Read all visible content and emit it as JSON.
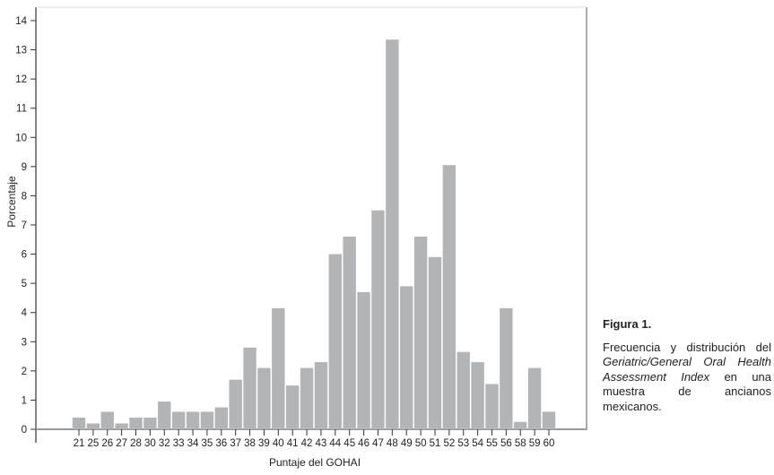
{
  "chart_data": {
    "type": "bar",
    "title": "",
    "xlabel": "Puntaje del GOHAI",
    "ylabel": "Porcentaje",
    "ylim": [
      0,
      14
    ],
    "yticks": [
      "0",
      "1",
      "2",
      "3",
      "4",
      "5",
      "6",
      "7",
      "8",
      "9",
      "10",
      "11",
      "12",
      "13",
      "14"
    ],
    "categories": [
      "21",
      "25",
      "26",
      "27",
      "28",
      "30",
      "32",
      "33",
      "34",
      "35",
      "36",
      "37",
      "38",
      "39",
      "40",
      "41",
      "42",
      "43",
      "44",
      "45",
      "46",
      "47",
      "48",
      "49",
      "50",
      "51",
      "52",
      "53",
      "54",
      "55",
      "56",
      "58",
      "59",
      "60"
    ],
    "values": [
      0.4,
      0.2,
      0.6,
      0.2,
      0.4,
      0.4,
      0.95,
      0.6,
      0.6,
      0.6,
      0.75,
      1.7,
      2.8,
      2.1,
      4.15,
      1.5,
      2.1,
      2.3,
      6.0,
      6.6,
      4.7,
      7.5,
      13.35,
      4.9,
      6.6,
      5.9,
      9.05,
      2.65,
      2.3,
      1.55,
      4.15,
      0.25,
      2.1,
      0.6
    ],
    "grid": false,
    "bar_color": "#b3b4b6"
  },
  "caption": {
    "title": "Figura 1.",
    "text_before": "Frecuencia y distribución del ",
    "text_italic": "Geriatric/General Oral Health Assessment Index",
    "text_after": " en una muestra de ancianos mexicanos."
  }
}
